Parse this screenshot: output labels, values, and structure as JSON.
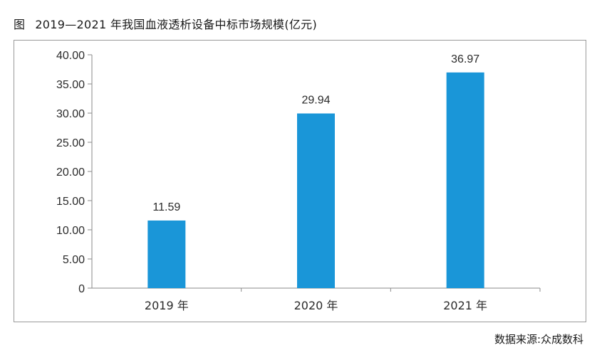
{
  "figure": {
    "label": "图",
    "title": "2019—2021 年我国血液透析设备中标市场规模(亿元)"
  },
  "source": "数据来源:众成数科",
  "chart_data": {
    "type": "bar",
    "categories": [
      "2019 年",
      "2020 年",
      "2021 年"
    ],
    "values": [
      11.59,
      29.94,
      36.97
    ],
    "value_labels": [
      "11.59",
      "29.94",
      "36.97"
    ],
    "ylim": [
      0,
      40
    ],
    "yticks": [
      0,
      5,
      10,
      15,
      20,
      25,
      30,
      35,
      40
    ],
    "ytick_labels": [
      "0",
      "5.00",
      "10.00",
      "15.00",
      "20.00",
      "25.00",
      "30.00",
      "35.00",
      "40.00"
    ],
    "bar_color": "#1a96d8",
    "grid": false,
    "xlabel": "",
    "ylabel": ""
  }
}
